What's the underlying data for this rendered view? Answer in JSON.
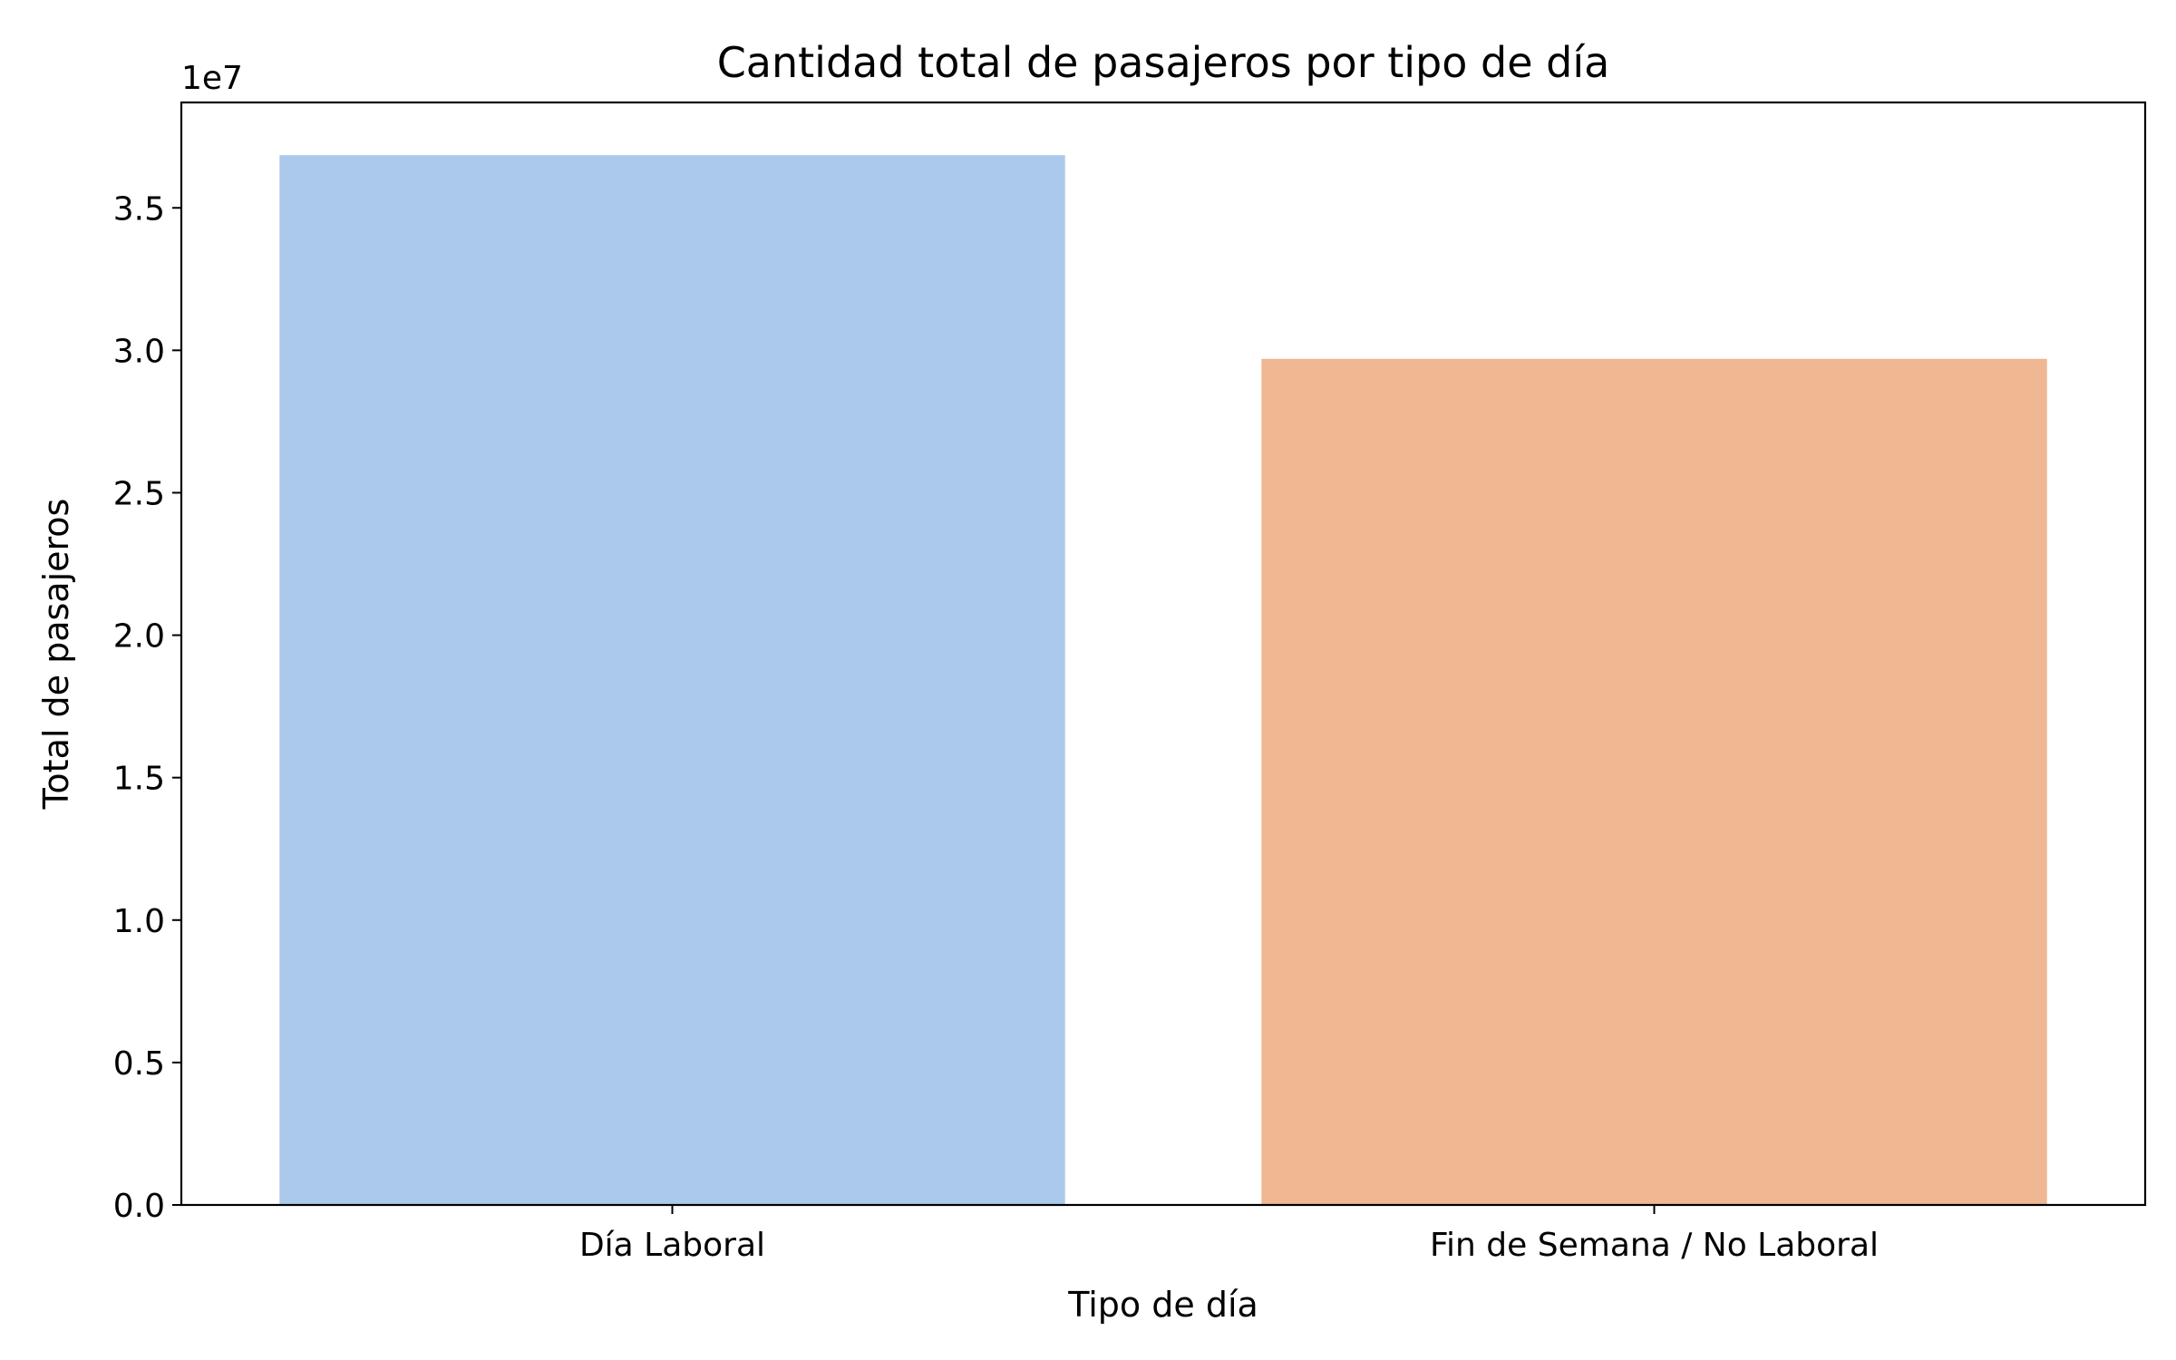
{
  "chart_data": {
    "type": "bar",
    "title": "Cantidad total de pasajeros por tipo de día",
    "xlabel": "Tipo de día",
    "ylabel": "Total de pasajeros",
    "y_offset_label": "1e7",
    "categories": [
      "Día Laboral",
      "Fin de Semana / No Laboral"
    ],
    "values": [
      36850000,
      29700000
    ],
    "ylim": [
      0,
      38700000
    ],
    "yticks": [
      0,
      5000000,
      10000000,
      15000000,
      20000000,
      25000000,
      30000000,
      35000000
    ],
    "ytick_labels": [
      "0.0",
      "0.5",
      "1.0",
      "1.5",
      "2.0",
      "2.5",
      "3.0",
      "3.5"
    ],
    "colors": [
      "#abc9eb",
      "#efb792"
    ],
    "grid": false,
    "legend": false
  }
}
